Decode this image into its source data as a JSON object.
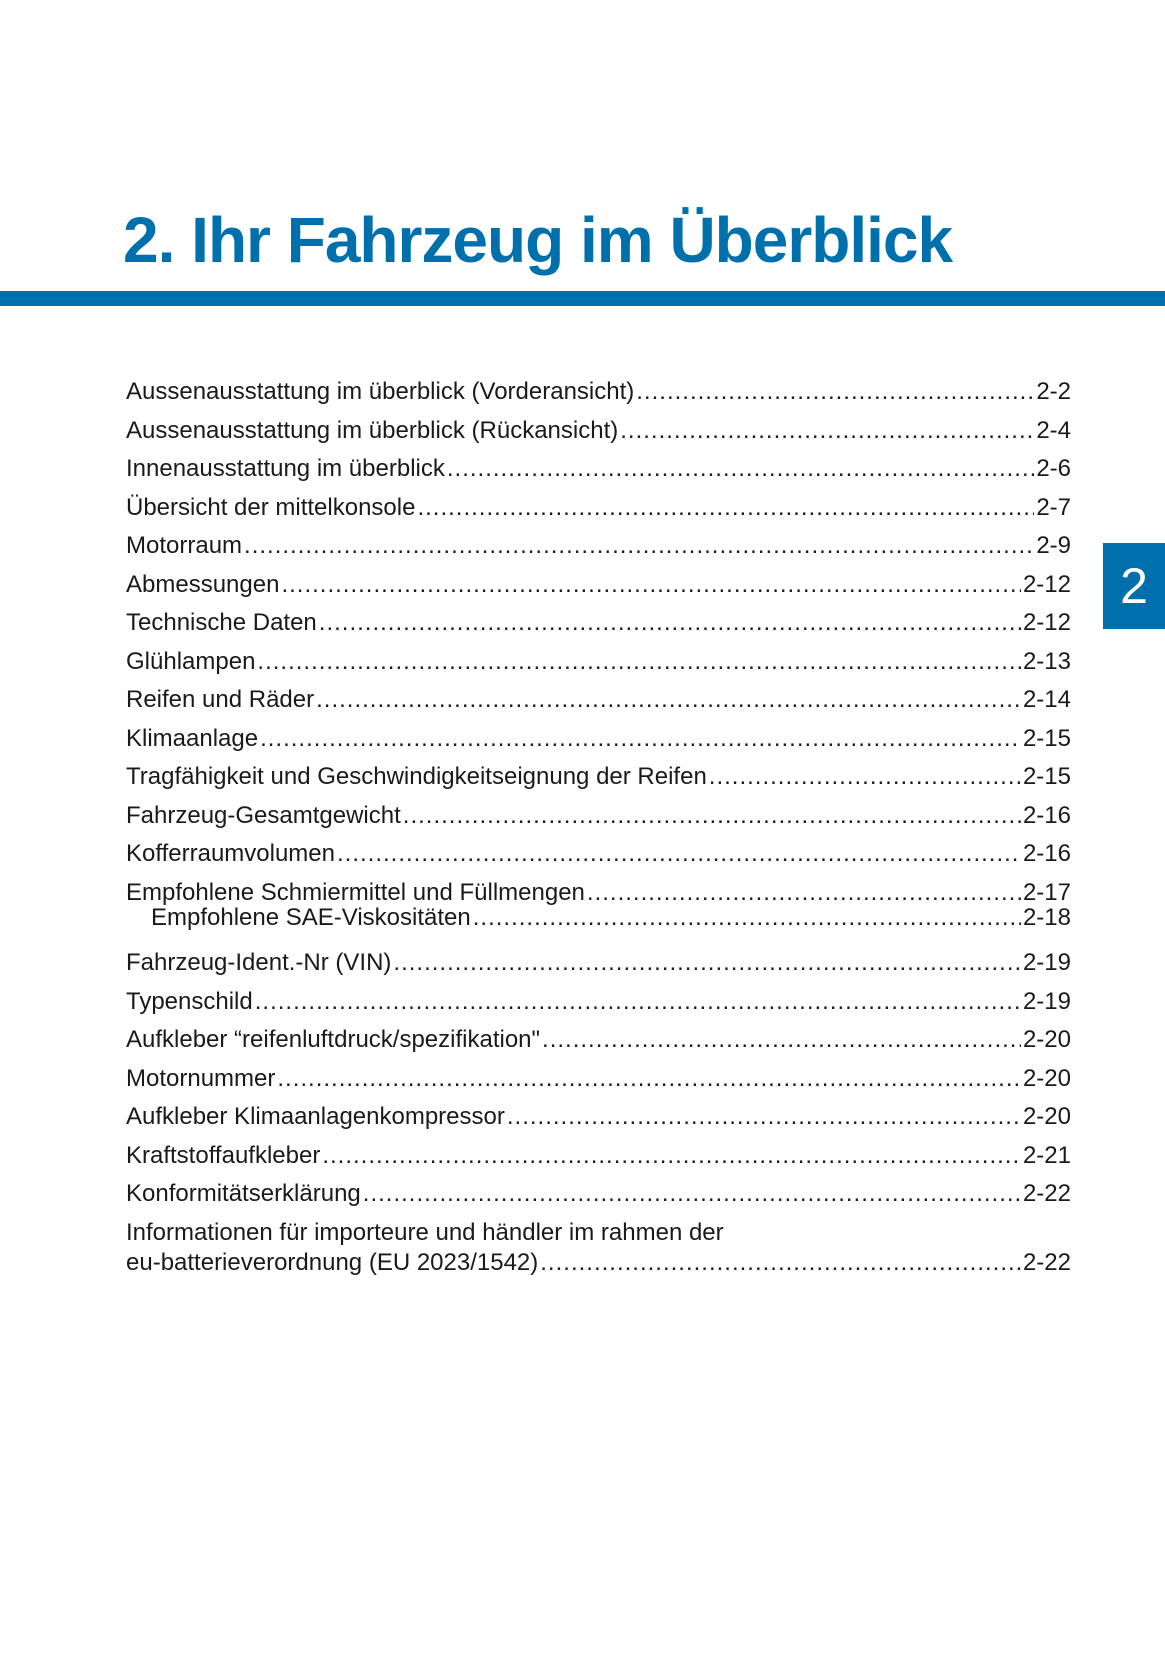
{
  "title": "2. Ihr Fahrzeug im Überblick",
  "chapter_tab": "2",
  "accent_color": "#0070ad",
  "toc": [
    {
      "label": "Aussenausstattung im überblick (Vorderansicht)",
      "page": "2-2"
    },
    {
      "label": "Aussenausstattung im überblick (Rückansicht)",
      "page": "2-4"
    },
    {
      "label": "Innenausstattung im überblick",
      "page": "2-6"
    },
    {
      "label": "Übersicht der mittelkonsole",
      "page": "2-7"
    },
    {
      "label": "Motorraum",
      "page": "2-9"
    },
    {
      "label": "Abmessungen",
      "page": "2-12"
    },
    {
      "label": "Technische Daten",
      "page": "2-12"
    },
    {
      "label": "Glühlampen",
      "page": "2-13"
    },
    {
      "label": "Reifen und Räder",
      "page": "2-14"
    },
    {
      "label": "Klimaanlage",
      "page": "2-15"
    },
    {
      "label": "Tragfähigkeit und Geschwindigkeitseignung der Reifen",
      "page": "2-15"
    },
    {
      "label": "Fahrzeug-Gesamtgewicht",
      "page": "2-16"
    },
    {
      "label": "Kofferraumvolumen",
      "page": "2-16"
    },
    {
      "label": "Empfohlene Schmiermittel und Füllmengen",
      "page": "2-17"
    },
    {
      "label": "Empfohlene SAE-Viskositäten",
      "page": "2-18",
      "sub": true
    },
    {
      "label": "Fahrzeug-Ident.-Nr (VIN)",
      "page": "2-19"
    },
    {
      "label": "Typenschild",
      "page": "2-19"
    },
    {
      "label": "Aufkleber “reifenluftdruck/spezifikation\"",
      "page": "2-20"
    },
    {
      "label": "Motornummer",
      "page": "2-20"
    },
    {
      "label": "Aufkleber Klimaanlagenkompressor",
      "page": "2-20"
    },
    {
      "label": "Kraftstoffaufkleber",
      "page": "2-21"
    },
    {
      "label": "Konformitätserklärung",
      "page": "2-22"
    }
  ],
  "last_entry": {
    "line1": "Informationen für importeure und händler im rahmen der",
    "line2": "eu-batterieverordnung (EU 2023/1542)",
    "page": "2-22"
  }
}
